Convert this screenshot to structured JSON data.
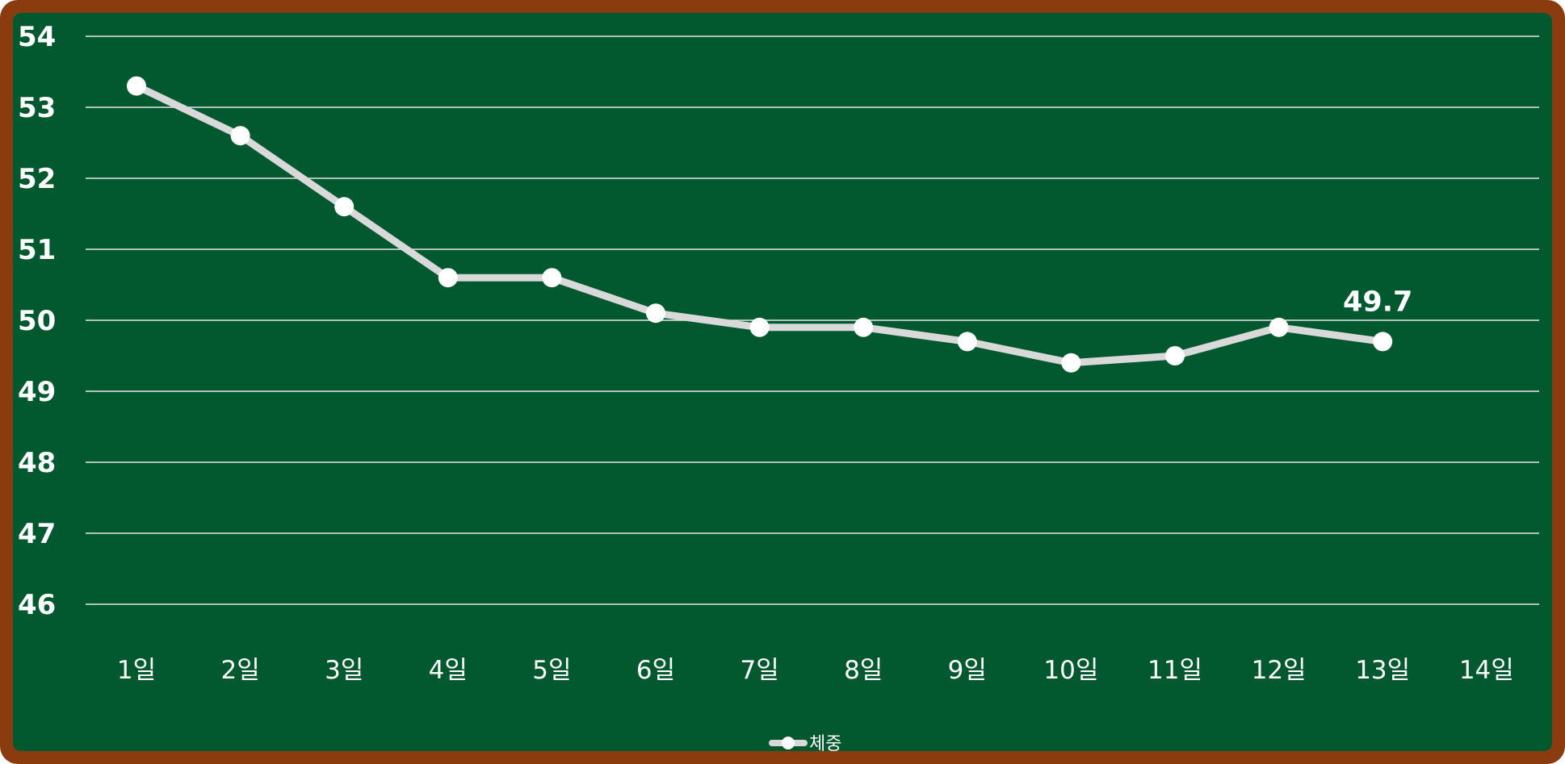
{
  "chart_data": {
    "type": "line",
    "categories": [
      "1일",
      "2일",
      "3일",
      "4일",
      "5일",
      "6일",
      "7일",
      "8일",
      "9일",
      "10일",
      "11일",
      "12일",
      "13일",
      "14일"
    ],
    "series": [
      {
        "name": "체중",
        "values": [
          53.3,
          52.6,
          51.6,
          50.6,
          50.6,
          50.1,
          49.9,
          49.9,
          49.7,
          49.4,
          49.5,
          49.9,
          49.7,
          null
        ],
        "color": "#d9d9d9"
      }
    ],
    "y_ticks": [
      "54",
      "53",
      "52",
      "51",
      "50",
      "49",
      "48",
      "47",
      "46"
    ],
    "ylim": [
      46,
      54
    ],
    "data_labels": [
      {
        "index": 12,
        "text": "49.7"
      }
    ],
    "grid": true,
    "legend": "bottom-center",
    "colors": {
      "background": "#03592f",
      "frame": "#8a3c0f",
      "gridline": "#e6e6e6",
      "marker": "#ffffff"
    }
  }
}
